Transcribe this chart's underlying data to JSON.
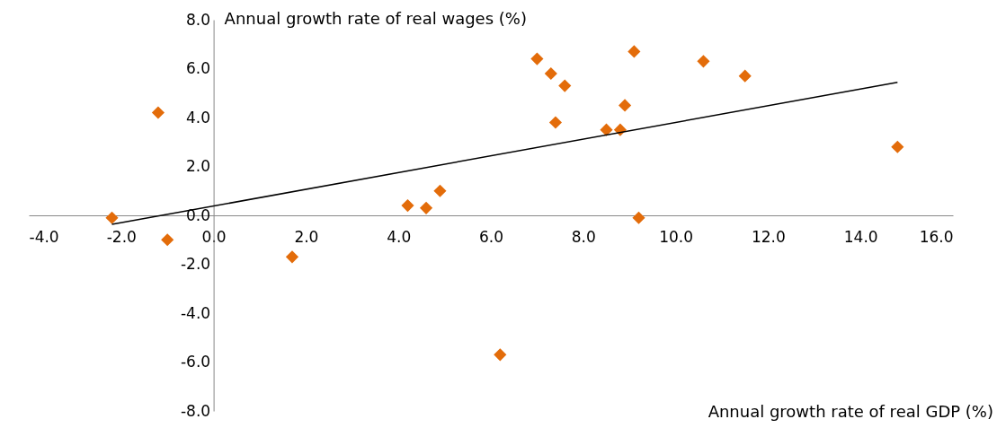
{
  "chart_data": {
    "type": "scatter",
    "xlabel": "Annual growth rate of real GDP (%)",
    "ylabel": "Annual growth rate of real wages (%)",
    "xlim": [
      -4,
      16
    ],
    "ylim": [
      -8,
      8
    ],
    "xticks": [
      {
        "value": -4,
        "label": "-4.0"
      },
      {
        "value": -2,
        "label": "-2.0"
      },
      {
        "value": 0,
        "label": "0.0"
      },
      {
        "value": 2,
        "label": "2.0"
      },
      {
        "value": 4,
        "label": "4.0"
      },
      {
        "value": 6,
        "label": "6.0"
      },
      {
        "value": 8,
        "label": "8.0"
      },
      {
        "value": 10,
        "label": "10.0"
      },
      {
        "value": 12,
        "label": "12.0"
      },
      {
        "value": 14,
        "label": "14.0"
      },
      {
        "value": 16,
        "label": "16.0"
      }
    ],
    "yticks": [
      {
        "value": -8,
        "label": "-8.0"
      },
      {
        "value": -6,
        "label": "-6.0"
      },
      {
        "value": -4,
        "label": "-4.0"
      },
      {
        "value": -2,
        "label": "-2.0"
      },
      {
        "value": 0,
        "label": "0.0"
      },
      {
        "value": 2,
        "label": "2.0"
      },
      {
        "value": 4,
        "label": "4.0"
      },
      {
        "value": 6,
        "label": "6.0"
      },
      {
        "value": 8,
        "label": "8.0"
      }
    ],
    "grid": false,
    "series": [
      {
        "marker": "diamond",
        "color": "#e36c0a",
        "x": [
          -2.2,
          -1.2,
          -1.0,
          1.7,
          4.2,
          4.6,
          4.9,
          6.2,
          7.0,
          7.3,
          7.4,
          7.6,
          8.5,
          8.8,
          8.9,
          9.1,
          9.2,
          10.6,
          11.5,
          14.8
        ],
        "values": [
          -0.1,
          4.2,
          -1.0,
          -1.7,
          0.4,
          0.3,
          1.0,
          -5.7,
          6.4,
          5.8,
          3.8,
          5.3,
          3.5,
          3.5,
          4.5,
          6.7,
          -0.1,
          6.3,
          5.7,
          2.8
        ]
      },
      {
        "type": "line",
        "line_style": "solid",
        "color": "#000000",
        "x": [
          -2.2,
          14.8
        ],
        "values": [
          -0.37,
          5.44
        ]
      }
    ]
  }
}
